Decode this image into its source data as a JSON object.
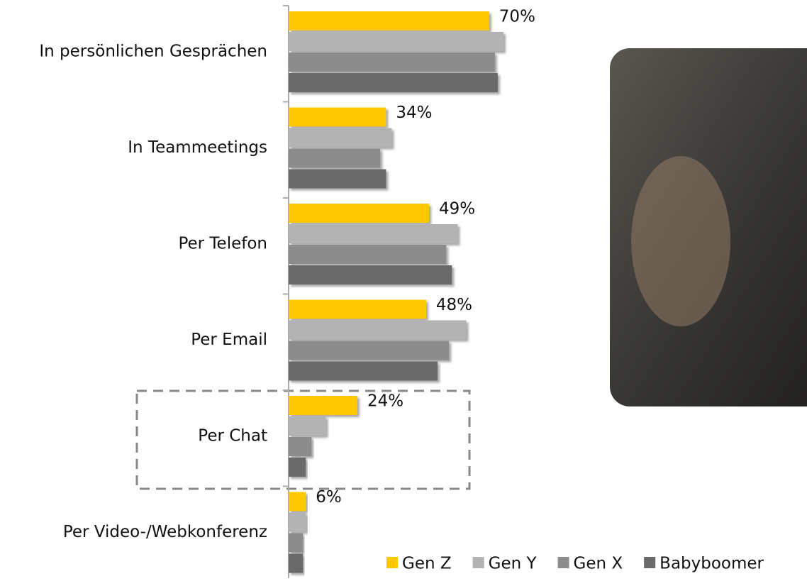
{
  "chart_data": {
    "type": "bar",
    "orientation": "horizontal",
    "categories": [
      "In persönlichen Gesprächen",
      "In Teammeetings",
      "Per Telefon",
      "Per Email",
      "Per Chat",
      "Per Video-/Webkonferenz"
    ],
    "series": [
      {
        "name": "Gen Z",
        "color": "#ffc800",
        "values": [
          70,
          34,
          49,
          48,
          24,
          6
        ],
        "value_labels": [
          "70%",
          "34%",
          "49%",
          "48%",
          "24%",
          "6%"
        ]
      },
      {
        "name": "Gen Y",
        "color": "#b3b3b3",
        "values": [
          75,
          36,
          59,
          62,
          13,
          6
        ]
      },
      {
        "name": "Gen X",
        "color": "#8c8c8c",
        "values": [
          72,
          32,
          55,
          56,
          8,
          5
        ]
      },
      {
        "name": "Babyboomer",
        "color": "#6a6a6a",
        "values": [
          73,
          34,
          57,
          52,
          6,
          5
        ]
      }
    ],
    "xlim": [
      0,
      100
    ],
    "legend": "bottom-right"
  }
}
